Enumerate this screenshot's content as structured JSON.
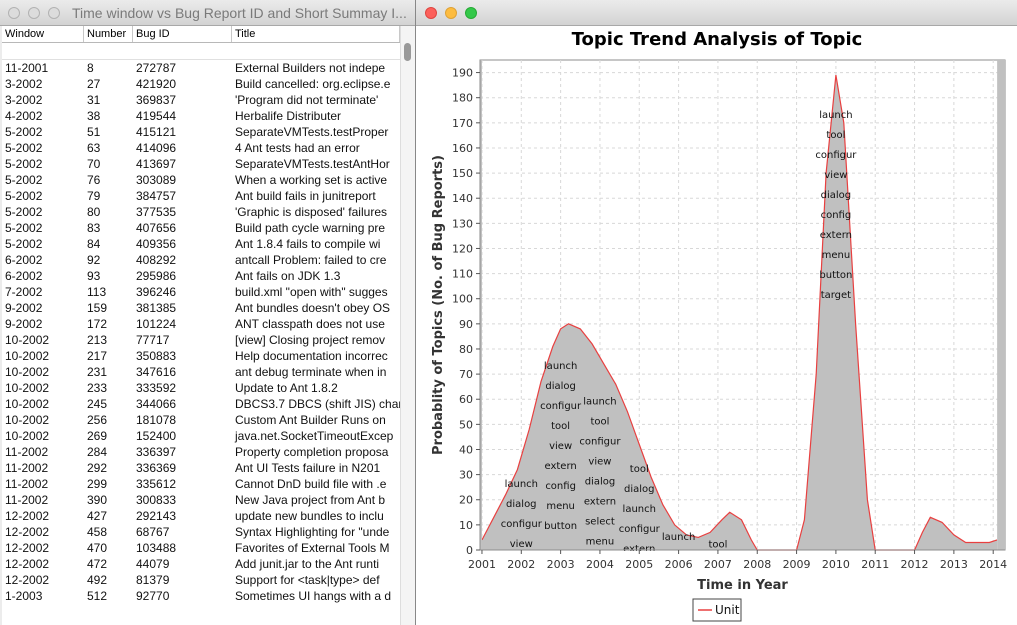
{
  "left_window": {
    "title": "Time window vs Bug Report ID and Short Summay I...",
    "columns": [
      "Window",
      "Number",
      "Bug ID",
      "Title"
    ],
    "rows": [
      [
        "11-2001",
        "8",
        "272787",
        "External Builders not indepe"
      ],
      [
        "3-2002",
        "27",
        "421920",
        "Build cancelled: org.eclipse.e"
      ],
      [
        "3-2002",
        "31",
        "369837",
        "'Program did not terminate'"
      ],
      [
        "4-2002",
        "38",
        "419544",
        "Herbalife Distributer"
      ],
      [
        "5-2002",
        "51",
        "415121",
        "SeparateVMTests.testProper"
      ],
      [
        "5-2002",
        "63",
        "414096",
        "4 Ant tests had an error"
      ],
      [
        "5-2002",
        "70",
        "413697",
        "SeparateVMTests.testAntHor"
      ],
      [
        "5-2002",
        "76",
        "303089",
        "When a working set is active"
      ],
      [
        "5-2002",
        "79",
        "384757",
        "Ant build fails in junitreport"
      ],
      [
        "5-2002",
        "80",
        "377535",
        "'Graphic is disposed' failures"
      ],
      [
        "5-2002",
        "83",
        "407656",
        "Build path cycle warning pre"
      ],
      [
        "5-2002",
        "84",
        "409356",
        "Ant 1.8.4 fails to compile wi"
      ],
      [
        "6-2002",
        "92",
        "408292",
        "antcall Problem: failed to cre"
      ],
      [
        "6-2002",
        "93",
        "295986",
        "Ant fails on JDK 1.3"
      ],
      [
        "7-2002",
        "113",
        "396246",
        "build.xml \"open with\" sugges"
      ],
      [
        "9-2002",
        "159",
        "381385",
        "Ant bundles doesn't obey OS"
      ],
      [
        "9-2002",
        "172",
        "101224",
        "ANT classpath does not use"
      ],
      [
        "10-2002",
        "213",
        "77717",
        "[view] Closing project remov"
      ],
      [
        "10-2002",
        "217",
        "350883",
        "Help documentation incorrec"
      ],
      [
        "10-2002",
        "231",
        "347616",
        "ant debug terminate when in"
      ],
      [
        "10-2002",
        "233",
        "333592",
        "Update to Ant 1.8.2"
      ],
      [
        "10-2002",
        "245",
        "344066",
        "DBCS3.7 DBCS (shift JIS) char"
      ],
      [
        "10-2002",
        "256",
        "181078",
        "Custom Ant Builder Runs on"
      ],
      [
        "10-2002",
        "269",
        "152400",
        "java.net.SocketTimeoutExcep"
      ],
      [
        "11-2002",
        "284",
        "336397",
        "Property completion proposa"
      ],
      [
        "11-2002",
        "292",
        "336369",
        "Ant UI Tests failure in N201"
      ],
      [
        "11-2002",
        "299",
        "335612",
        "Cannot DnD build file with .e"
      ],
      [
        "11-2002",
        "390",
        "300833",
        "New Java project from Ant b"
      ],
      [
        "12-2002",
        "427",
        "292143",
        "update new bundles to inclu"
      ],
      [
        "12-2002",
        "458",
        "68767",
        "Syntax Highlighting for \"unde"
      ],
      [
        "12-2002",
        "470",
        "103488",
        "Favorites of External Tools M"
      ],
      [
        "12-2002",
        "472",
        "44079",
        "Add junit.jar to the Ant runti"
      ],
      [
        "12-2002",
        "492",
        "81379",
        "Support for <task|type> def"
      ],
      [
        "1-2003",
        "512",
        "92770",
        "Sometimes UI hangs with a d"
      ]
    ]
  },
  "right_window": {
    "chart_data": {
      "type": "area",
      "title": "Topic Trend Analysis of Topic",
      "xlabel": "Time in Year",
      "ylabel": "Probablity of Topics (No. of Bug Reports)",
      "xlim": [
        2000.95,
        2014.3
      ],
      "ylim": [
        0,
        195
      ],
      "x_ticks": [
        "2001",
        "2002",
        "2003",
        "2004",
        "2005",
        "2006",
        "2007",
        "2008",
        "2009",
        "2010",
        "2011",
        "2012",
        "2013",
        "2014"
      ],
      "y_ticks": [
        "0",
        "10",
        "20",
        "30",
        "40",
        "50",
        "60",
        "70",
        "80",
        "90",
        "100",
        "110",
        "120",
        "130",
        "140",
        "150",
        "160",
        "170",
        "180",
        "190"
      ],
      "grid": true,
      "legend_position": "bottom",
      "series": [
        {
          "name": "Unit",
          "x": [
            2001.0,
            2001.3,
            2001.6,
            2001.9,
            2002.2,
            2002.5,
            2002.8,
            2003.0,
            2003.2,
            2003.5,
            2003.8,
            2004.1,
            2004.4,
            2004.7,
            2005.0,
            2005.3,
            2005.6,
            2005.9,
            2006.2,
            2006.5,
            2006.8,
            2007.1,
            2007.3,
            2007.6,
            2007.85,
            2008.0,
            2008.1,
            2008.3,
            2008.6,
            2008.9,
            2009.0,
            2009.2,
            2009.5,
            2009.75,
            2010.0,
            2010.2,
            2010.5,
            2010.8,
            2011.0,
            2011.3,
            2011.6,
            2011.9,
            2012.0,
            2012.2,
            2012.4,
            2012.7,
            2013.0,
            2013.3,
            2013.6,
            2013.9,
            2014.1
          ],
          "values": [
            4,
            13,
            22,
            32,
            48,
            67,
            81,
            88,
            90,
            88,
            82,
            74,
            66,
            55,
            42,
            29,
            18,
            10,
            6,
            5,
            7,
            12,
            15,
            12,
            4,
            0,
            0,
            0,
            0,
            0,
            0,
            12,
            70,
            150,
            189,
            170,
            90,
            20,
            0,
            0,
            0,
            0,
            0,
            7,
            13,
            11,
            6,
            3,
            3,
            3,
            4
          ]
        }
      ],
      "annotations": [
        {
          "x": 2010.0,
          "y_top": 172,
          "words": [
            "launch",
            "tool",
            "configur",
            "view",
            "dialog",
            "config",
            "extern",
            "menu",
            "button",
            "target"
          ]
        },
        {
          "x": 2003.0,
          "y_top": 72,
          "words": [
            "launch",
            "dialog",
            "configur",
            "tool",
            "view",
            "extern",
            "config",
            "menu",
            "button"
          ]
        },
        {
          "x": 2004.0,
          "y_top": 58,
          "words": [
            "launch",
            "tool",
            "configur",
            "view",
            "dialog",
            "extern",
            "select",
            "menu"
          ]
        },
        {
          "x": 2005.0,
          "y_top": 31,
          "words": [
            "tool",
            "dialog",
            "launch",
            "configur",
            "extern"
          ]
        },
        {
          "x": 2002.0,
          "y_top": 25,
          "words": [
            "launch",
            "dialog",
            "configur",
            "view"
          ]
        },
        {
          "x": 2006.0,
          "y_top": 4,
          "words": [
            "launch"
          ]
        },
        {
          "x": 2007.0,
          "y_top": 1,
          "words": [
            "tool"
          ]
        }
      ]
    }
  }
}
